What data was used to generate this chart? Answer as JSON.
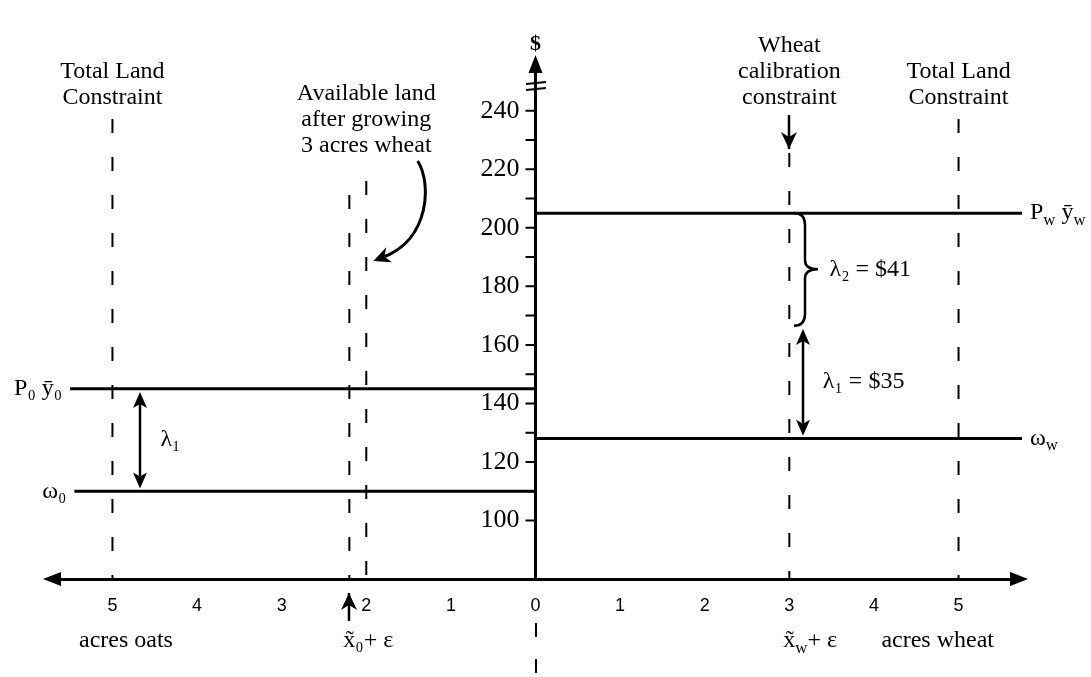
{
  "chart_data": {
    "type": "line",
    "ylabel": "$",
    "xlabel": "acres wheat",
    "xlim": [
      -5.75,
      5.75
    ],
    "xticks": [
      {
        "value": -5,
        "label": "5"
      },
      {
        "value": -4,
        "label": "4"
      },
      {
        "value": -3,
        "label": "3"
      },
      {
        "value": -2,
        "label": "2"
      },
      {
        "value": -1,
        "label": "1"
      },
      0,
      1,
      2,
      3,
      4,
      5
    ],
    "ylim": [
      80,
      257
    ],
    "yticks": [
      100,
      {
        "value": 110,
        "label": null
      },
      120,
      {
        "value": 130,
        "label": null
      },
      140,
      {
        "value": 150,
        "label": null
      },
      160,
      {
        "value": 170,
        "label": null
      },
      180,
      {
        "value": 190,
        "label": null
      },
      200,
      {
        "value": 210,
        "label": null
      },
      220,
      {
        "value": 230,
        "label": null
      },
      240
    ],
    "series": [
      {
        "name": "P₀ ȳ₀",
        "color": "#000000",
        "x": [
          -5.5,
          0
        ],
        "values": [
          145,
          145
        ]
      },
      {
        "name": "ω₀",
        "color": "#000000",
        "x": [
          -5.45,
          0
        ],
        "values": [
          110,
          110
        ]
      },
      {
        "name": "P$_{w}$ ȳ$_{w}$",
        "color": "#000000",
        "x": [
          0,
          5.75
        ],
        "values": [
          205,
          205
        ]
      },
      {
        "name": "ω$_{w}$",
        "color": "#000000",
        "x": [
          0,
          5.75
        ],
        "values": [
          128,
          128
        ]
      }
    ],
    "ref_lines": [
      {
        "axis": "x",
        "value": -5,
        "label": "Total Land Constraint",
        "line_style": "dashed"
      },
      {
        "axis": "x",
        "value": -2,
        "label": "Available land after growing 3 acres wheat",
        "line_style": "dashed"
      },
      {
        "axis": "x",
        "value": -2.2,
        "line_style": "dashed"
      },
      {
        "axis": "x",
        "value": 3,
        "label": "Wheat calibration constraint",
        "line_style": "dashed"
      },
      {
        "axis": "x",
        "value": 5,
        "label": "Total Land Constraint",
        "line_style": "dashed"
      }
    ],
    "annotations": [
      {
        "text": "λ₁",
        "x": -4.67,
        "y": 145
      },
      {
        "text": "λ₂ = $41",
        "x": 3.05,
        "y": 205
      },
      {
        "text": "λ₁ = $35",
        "x": 3.16,
        "y": 128
      },
      {
        "text": "x̃₀+ ε",
        "x": -2.2,
        "y": 80
      },
      {
        "text": "x̃$_{w}$+ ε",
        "x": 3,
        "y": 80
      },
      "acres oats"
    ]
  }
}
